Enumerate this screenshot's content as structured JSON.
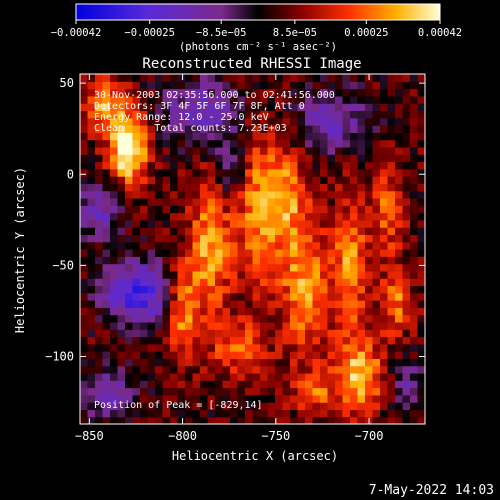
{
  "chart_data": {
    "type": "heatmap",
    "title": "Reconstructed RHESSI Image",
    "xlabel": "Heliocentric X (arcsec)",
    "ylabel": "Heliocentric Y (arcsec)",
    "xlim": [
      -855,
      -670
    ],
    "ylim": [
      -137,
      55
    ],
    "x_ticks": [
      -850,
      -800,
      -750,
      -700
    ],
    "y_ticks": [
      -100,
      -50,
      0,
      50
    ],
    "x_tick_labels": [
      "−850",
      "−800",
      "−750",
      "−700"
    ],
    "y_tick_labels": [
      "−100",
      "−50",
      "0",
      "50"
    ],
    "colorbar": {
      "ticks": [
        -0.00042,
        -0.00025,
        -8.5e-05,
        8.5e-05,
        0.00025,
        0.00042
      ],
      "tick_labels": [
        "−0.00042",
        "−0.00025",
        "−8.5e−05",
        "8.5e−05",
        "0.00025",
        "0.00042"
      ],
      "unit_label": "(photons cm⁻² s⁻¹ asec⁻²)",
      "range": [
        -0.00042,
        0.00042
      ]
    },
    "annotations": [
      "30-Nov-2003 02:35:56.000 to 02:41:56.000",
      "Detectors: 3F 4F 5F 6F 7F 8F, Att 0",
      "Energy Range: 12.0 - 25.0 keV",
      "Clean     Total counts: 7.23E+03"
    ],
    "peak_label": "Position of Peak = [-829,14]",
    "peak": [
      -829,
      14
    ],
    "peak_value": 0.00042,
    "sources": [
      {
        "x": -829,
        "y": 14,
        "intensity": 1.0,
        "sx": 7,
        "sy": 13
      },
      {
        "x": -842,
        "y": 38,
        "intensity": 0.6,
        "sx": 8,
        "sy": 10
      },
      {
        "x": -785,
        "y": -40,
        "intensity": 0.62,
        "sx": 8,
        "sy": 26
      },
      {
        "x": -760,
        "y": -20,
        "intensity": 0.55,
        "sx": 8,
        "sy": 30
      },
      {
        "x": -735,
        "y": -60,
        "intensity": 0.6,
        "sx": 9,
        "sy": 28
      },
      {
        "x": -710,
        "y": -50,
        "intensity": 0.58,
        "sx": 7,
        "sy": 25
      },
      {
        "x": -705,
        "y": -110,
        "intensity": 0.7,
        "sx": 10,
        "sy": 14
      },
      {
        "x": -745,
        "y": -10,
        "intensity": 0.5,
        "sx": 7,
        "sy": 20
      },
      {
        "x": -690,
        "y": -20,
        "intensity": 0.45,
        "sx": 6,
        "sy": 18
      },
      {
        "x": -685,
        "y": -70,
        "intensity": 0.5,
        "sx": 6,
        "sy": 12
      },
      {
        "x": -770,
        "y": -95,
        "intensity": 0.45,
        "sx": 10,
        "sy": 10
      },
      {
        "x": -800,
        "y": -75,
        "intensity": 0.55,
        "sx": 6,
        "sy": 18
      },
      {
        "x": -730,
        "y": -120,
        "intensity": 0.4,
        "sx": 8,
        "sy": 8
      }
    ],
    "negative_regions": [
      {
        "x": -825,
        "y": -65,
        "intensity": 0.85,
        "sx": 12,
        "sy": 12
      },
      {
        "x": -845,
        "y": -20,
        "intensity": 0.55,
        "sx": 8,
        "sy": 10
      },
      {
        "x": -790,
        "y": 35,
        "intensity": 0.55,
        "sx": 14,
        "sy": 12
      },
      {
        "x": -720,
        "y": 30,
        "intensity": 0.5,
        "sx": 14,
        "sy": 12
      },
      {
        "x": -840,
        "y": -120,
        "intensity": 0.5,
        "sx": 10,
        "sy": 10
      },
      {
        "x": -775,
        "y": 5,
        "intensity": 0.35,
        "sx": 6,
        "sy": 14
      },
      {
        "x": -680,
        "y": -115,
        "intensity": 0.4,
        "sx": 8,
        "sy": 10
      }
    ]
  },
  "footer": {
    "timestamp": "7-May-2022 14:03"
  }
}
